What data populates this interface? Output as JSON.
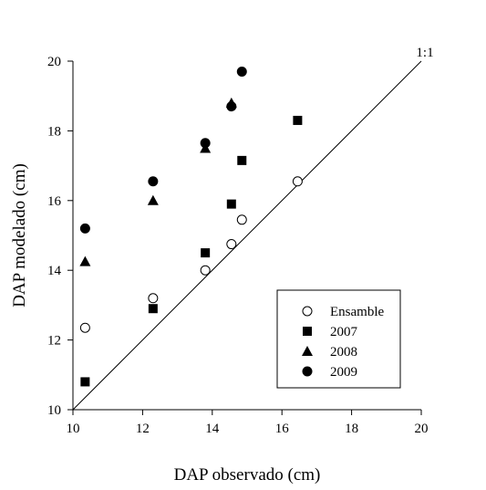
{
  "chart_data": {
    "type": "scatter",
    "title": "",
    "xlabel": "DAP observado (cm)",
    "ylabel": "DAP modelado (cm)",
    "xlim": [
      10,
      20
    ],
    "ylim": [
      10,
      20
    ],
    "xticks": [
      "10",
      "12",
      "14",
      "16",
      "18",
      "20"
    ],
    "yticks": [
      "10",
      "12",
      "14",
      "16",
      "18",
      "20"
    ],
    "grid": false,
    "legend_position": "bottom-right",
    "reference_line": {
      "label": "1:1",
      "from": [
        10,
        10
      ],
      "to": [
        20,
        20
      ]
    },
    "series": [
      {
        "name": "Ensamble",
        "marker": "open-circle",
        "x": [
          10.35,
          12.3,
          13.8,
          14.55,
          14.85,
          16.45
        ],
        "y": [
          12.35,
          13.2,
          14.0,
          14.75,
          15.45,
          16.55
        ]
      },
      {
        "name": "2007",
        "marker": "filled-square",
        "x": [
          10.35,
          12.3,
          13.8,
          14.55,
          14.85,
          16.45
        ],
        "y": [
          10.8,
          12.9,
          14.5,
          15.9,
          17.15,
          18.3
        ]
      },
      {
        "name": "2008",
        "marker": "filled-triangle",
        "x": [
          10.35,
          12.3,
          13.8,
          14.55
        ],
        "y": [
          14.25,
          16.0,
          17.5,
          18.8
        ]
      },
      {
        "name": "2009",
        "marker": "filled-circle",
        "x": [
          10.35,
          12.3,
          13.8,
          14.55,
          14.85
        ],
        "y": [
          15.2,
          16.55,
          17.65,
          18.7,
          19.7
        ]
      }
    ]
  }
}
